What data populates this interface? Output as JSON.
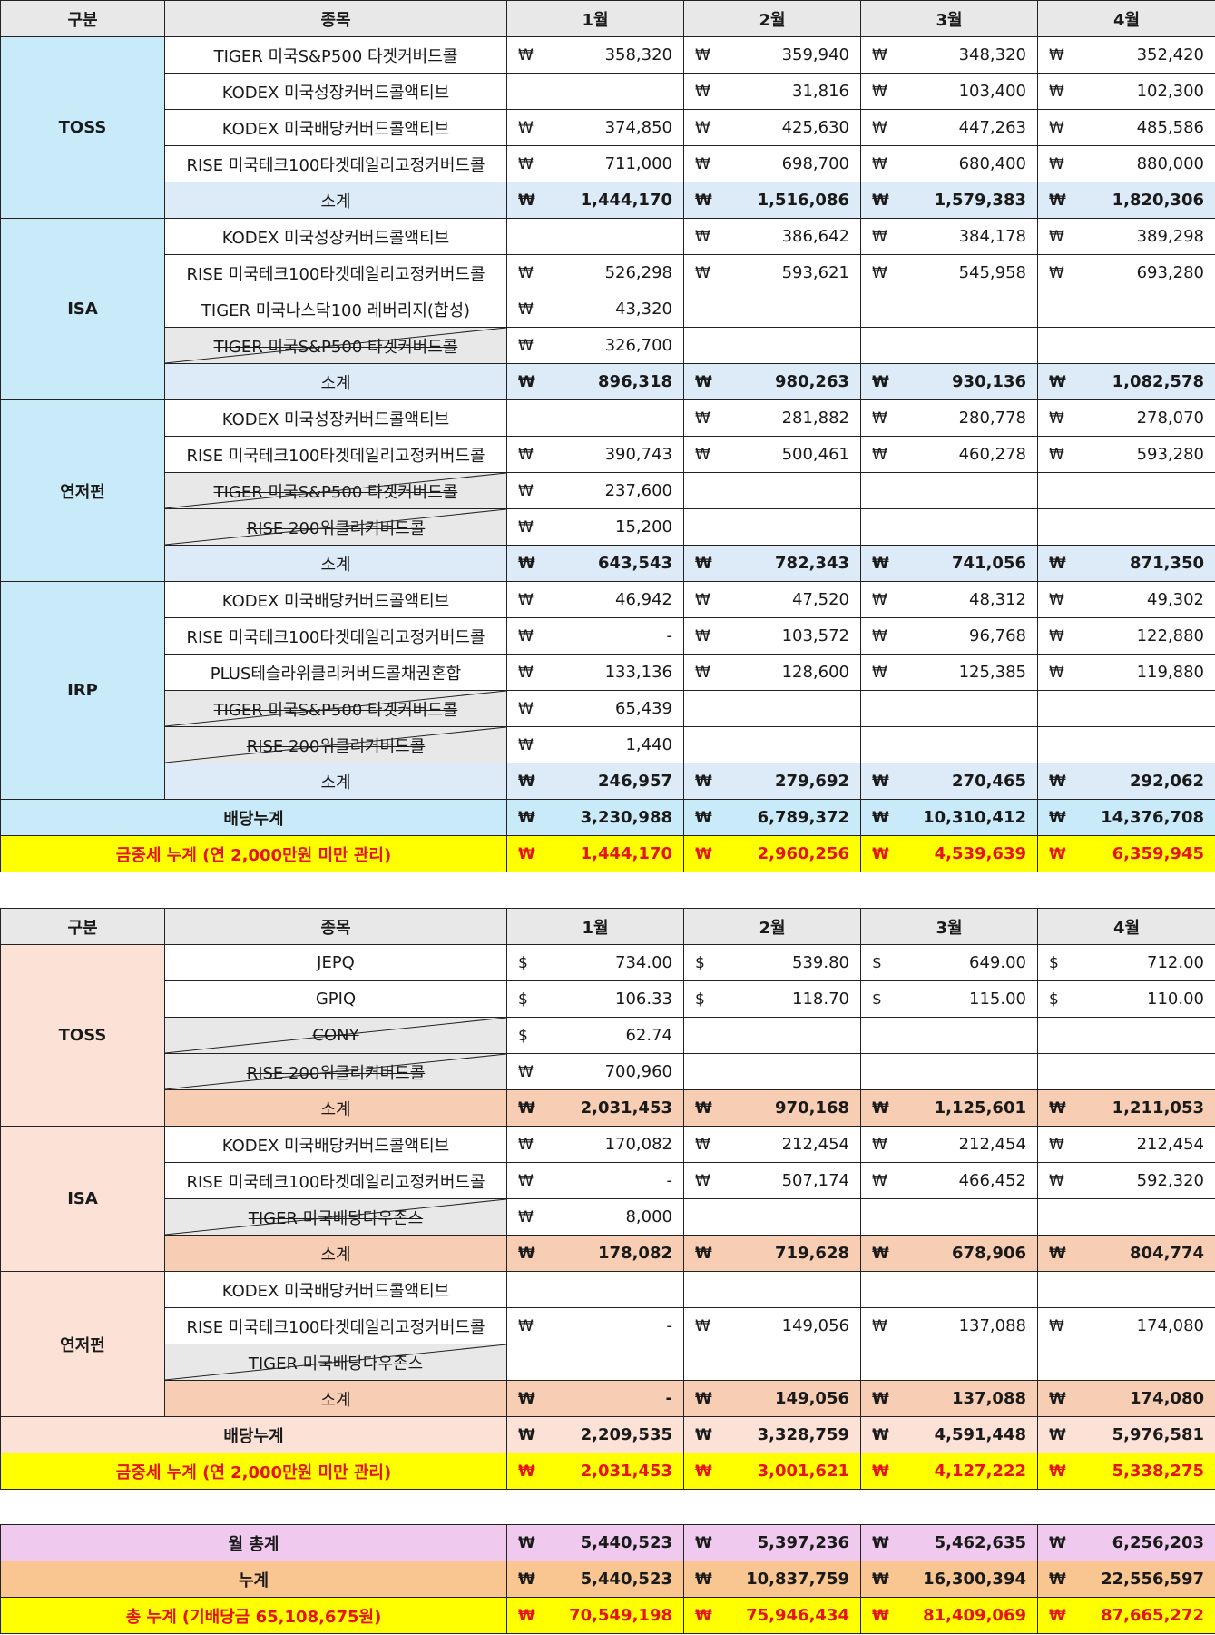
{
  "table1": {
    "headers": [
      "구분",
      "종목",
      "1월",
      "2월",
      "3월",
      "4월"
    ],
    "groups": [
      {
        "name": "TOSS",
        "rows": [
          {
            "item": "TIGER 미국S&P500 타겟커버드콜",
            "strike": false,
            "cells": [
              [
                "₩",
                "358,320"
              ],
              [
                "₩",
                "359,940"
              ],
              [
                "₩",
                "348,320"
              ],
              [
                "₩",
                "352,420"
              ]
            ]
          },
          {
            "item": "KODEX 미국성장커버드콜액티브",
            "strike": false,
            "cells": [
              [
                "",
                ""
              ],
              [
                "₩",
                "31,816"
              ],
              [
                "₩",
                "103,400"
              ],
              [
                "₩",
                "102,300"
              ]
            ]
          },
          {
            "item": "KODEX 미국배당커버드콜액티브",
            "strike": false,
            "cells": [
              [
                "₩",
                "374,850"
              ],
              [
                "₩",
                "425,630"
              ],
              [
                "₩",
                "447,263"
              ],
              [
                "₩",
                "485,586"
              ]
            ]
          },
          {
            "item": "RISE 미국테크100타겟데일리고정커버드콜",
            "strike": false,
            "cells": [
              [
                "₩",
                "711,000"
              ],
              [
                "₩",
                "698,700"
              ],
              [
                "₩",
                "680,400"
              ],
              [
                "₩",
                "880,000"
              ]
            ]
          }
        ],
        "subtotal": {
          "label": "소계",
          "cells": [
            [
              "₩",
              "1,444,170"
            ],
            [
              "₩",
              "1,516,086"
            ],
            [
              "₩",
              "1,579,383"
            ],
            [
              "₩",
              "1,820,306"
            ]
          ]
        }
      },
      {
        "name": "ISA",
        "rows": [
          {
            "item": "KODEX 미국성장커버드콜액티브",
            "strike": false,
            "cells": [
              [
                "",
                ""
              ],
              [
                "₩",
                "386,642"
              ],
              [
                "₩",
                "384,178"
              ],
              [
                "₩",
                "389,298"
              ]
            ]
          },
          {
            "item": "RISE 미국테크100타겟데일리고정커버드콜",
            "strike": false,
            "cells": [
              [
                "₩",
                "526,298"
              ],
              [
                "₩",
                "593,621"
              ],
              [
                "₩",
                "545,958"
              ],
              [
                "₩",
                "693,280"
              ]
            ]
          },
          {
            "item": "TIGER 미국나스닥100 레버리지(합성)",
            "strike": false,
            "cells": [
              [
                "₩",
                "43,320"
              ],
              [
                "",
                ""
              ],
              [
                "",
                ""
              ],
              [
                "",
                ""
              ]
            ]
          },
          {
            "item": "TIGER 미국S&P500 타겟커버드콜",
            "strike": true,
            "cells": [
              [
                "₩",
                "326,700"
              ],
              [
                "",
                ""
              ],
              [
                "",
                ""
              ],
              [
                "",
                ""
              ]
            ]
          }
        ],
        "subtotal": {
          "label": "소계",
          "cells": [
            [
              "₩",
              "896,318"
            ],
            [
              "₩",
              "980,263"
            ],
            [
              "₩",
              "930,136"
            ],
            [
              "₩",
              "1,082,578"
            ]
          ]
        }
      },
      {
        "name": "연저펀",
        "rows": [
          {
            "item": "KODEX 미국성장커버드콜액티브",
            "strike": false,
            "cells": [
              [
                "",
                ""
              ],
              [
                "₩",
                "281,882"
              ],
              [
                "₩",
                "280,778"
              ],
              [
                "₩",
                "278,070"
              ]
            ]
          },
          {
            "item": "RISE 미국테크100타겟데일리고정커버드콜",
            "strike": false,
            "cells": [
              [
                "₩",
                "390,743"
              ],
              [
                "₩",
                "500,461"
              ],
              [
                "₩",
                "460,278"
              ],
              [
                "₩",
                "593,280"
              ]
            ]
          },
          {
            "item": "TIGER 미국S&P500 타겟커버드콜",
            "strike": true,
            "cells": [
              [
                "₩",
                "237,600"
              ],
              [
                "",
                ""
              ],
              [
                "",
                ""
              ],
              [
                "",
                ""
              ]
            ]
          },
          {
            "item": "RISE 200위클리커버드콜",
            "strike": true,
            "cells": [
              [
                "₩",
                "15,200"
              ],
              [
                "",
                ""
              ],
              [
                "",
                ""
              ],
              [
                "",
                ""
              ]
            ]
          }
        ],
        "subtotal": {
          "label": "소계",
          "cells": [
            [
              "₩",
              "643,543"
            ],
            [
              "₩",
              "782,343"
            ],
            [
              "₩",
              "741,056"
            ],
            [
              "₩",
              "871,350"
            ]
          ]
        }
      },
      {
        "name": "IRP",
        "rows": [
          {
            "item": "KODEX 미국배당커버드콜액티브",
            "strike": false,
            "cells": [
              [
                "₩",
                "46,942"
              ],
              [
                "₩",
                "47,520"
              ],
              [
                "₩",
                "48,312"
              ],
              [
                "₩",
                "49,302"
              ]
            ]
          },
          {
            "item": "RISE 미국테크100타겟데일리고정커버드콜",
            "strike": false,
            "cells": [
              [
                "₩",
                "-"
              ],
              [
                "₩",
                "103,572"
              ],
              [
                "₩",
                "96,768"
              ],
              [
                "₩",
                "122,880"
              ]
            ]
          },
          {
            "item": "PLUS테슬라위클리커버드콜채권혼합",
            "strike": false,
            "cells": [
              [
                "₩",
                "133,136"
              ],
              [
                "₩",
                "128,600"
              ],
              [
                "₩",
                "125,385"
              ],
              [
                "₩",
                "119,880"
              ]
            ]
          },
          {
            "item": "TIGER 미국S&P500 타겟커버드콜",
            "strike": true,
            "cells": [
              [
                "₩",
                "65,439"
              ],
              [
                "",
                ""
              ],
              [
                "",
                ""
              ],
              [
                "",
                ""
              ]
            ]
          },
          {
            "item": "RISE 200위클리커버드콜",
            "strike": true,
            "cells": [
              [
                "₩",
                "1,440"
              ],
              [
                "",
                ""
              ],
              [
                "",
                ""
              ],
              [
                "",
                ""
              ]
            ]
          }
        ],
        "subtotal": {
          "label": "소계",
          "cells": [
            [
              "₩",
              "246,957"
            ],
            [
              "₩",
              "279,692"
            ],
            [
              "₩",
              "270,465"
            ],
            [
              "₩",
              "292,062"
            ]
          ]
        }
      }
    ],
    "accum": {
      "label": "배당누계",
      "cells": [
        [
          "₩",
          "3,230,988"
        ],
        [
          "₩",
          "6,789,372"
        ],
        [
          "₩",
          "10,310,412"
        ],
        [
          "₩",
          "14,376,708"
        ]
      ]
    },
    "tax": {
      "label": "금중세 누계 (연 2,000만원 미만 관리)",
      "cells": [
        [
          "₩",
          "1,444,170"
        ],
        [
          "₩",
          "2,960,256"
        ],
        [
          "₩",
          "4,539,639"
        ],
        [
          "₩",
          "6,359,945"
        ]
      ]
    }
  },
  "table2": {
    "headers": [
      "구분",
      "종목",
      "1월",
      "2월",
      "3월",
      "4월"
    ],
    "groups": [
      {
        "name": "TOSS",
        "rows": [
          {
            "item": "JEPQ",
            "strike": false,
            "cells": [
              [
                "$",
                "734.00"
              ],
              [
                "$",
                "539.80"
              ],
              [
                "$",
                "649.00"
              ],
              [
                "$",
                "712.00"
              ]
            ]
          },
          {
            "item": "GPIQ",
            "strike": false,
            "cells": [
              [
                "$",
                "106.33"
              ],
              [
                "$",
                "118.70"
              ],
              [
                "$",
                "115.00"
              ],
              [
                "$",
                "110.00"
              ]
            ]
          },
          {
            "item": "CONY",
            "strike": true,
            "cells": [
              [
                "$",
                "62.74"
              ],
              [
                "",
                ""
              ],
              [
                "",
                ""
              ],
              [
                "",
                ""
              ]
            ]
          },
          {
            "item": "RISE 200위클리커버드콜",
            "strike": true,
            "cells": [
              [
                "₩",
                "700,960"
              ],
              [
                "",
                ""
              ],
              [
                "",
                ""
              ],
              [
                "",
                ""
              ]
            ]
          }
        ],
        "subtotal": {
          "label": "소계",
          "cells": [
            [
              "₩",
              "2,031,453"
            ],
            [
              "₩",
              "970,168"
            ],
            [
              "₩",
              "1,125,601"
            ],
            [
              "₩",
              "1,211,053"
            ]
          ]
        }
      },
      {
        "name": "ISA",
        "rows": [
          {
            "item": "KODEX 미국배당커버드콜액티브",
            "strike": false,
            "cells": [
              [
                "₩",
                "170,082"
              ],
              [
                "₩",
                "212,454"
              ],
              [
                "₩",
                "212,454"
              ],
              [
                "₩",
                "212,454"
              ]
            ]
          },
          {
            "item": "RISE 미국테크100타겟데일리고정커버드콜",
            "strike": false,
            "cells": [
              [
                "₩",
                "-"
              ],
              [
                "₩",
                "507,174"
              ],
              [
                "₩",
                "466,452"
              ],
              [
                "₩",
                "592,320"
              ]
            ]
          },
          {
            "item": "TIGER 미국배당다우존스",
            "strike": true,
            "cells": [
              [
                "₩",
                "8,000"
              ],
              [
                "",
                ""
              ],
              [
                "",
                ""
              ],
              [
                "",
                ""
              ]
            ]
          }
        ],
        "subtotal": {
          "label": "소계",
          "cells": [
            [
              "₩",
              "178,082"
            ],
            [
              "₩",
              "719,628"
            ],
            [
              "₩",
              "678,906"
            ],
            [
              "₩",
              "804,774"
            ]
          ]
        }
      },
      {
        "name": "연저펀",
        "rows": [
          {
            "item": "KODEX 미국배당커버드콜액티브",
            "strike": false,
            "cells": [
              [
                "",
                ""
              ],
              [
                "",
                ""
              ],
              [
                "",
                ""
              ],
              [
                "",
                ""
              ]
            ]
          },
          {
            "item": "RISE 미국테크100타겟데일리고정커버드콜",
            "strike": false,
            "cells": [
              [
                "₩",
                "-"
              ],
              [
                "₩",
                "149,056"
              ],
              [
                "₩",
                "137,088"
              ],
              [
                "₩",
                "174,080"
              ]
            ]
          },
          {
            "item": "TIGER 미국배당다우존스",
            "strike": true,
            "cells": [
              [
                "",
                ""
              ],
              [
                "",
                ""
              ],
              [
                "",
                ""
              ],
              [
                "",
                ""
              ]
            ]
          }
        ],
        "subtotal": {
          "label": "소계",
          "cells": [
            [
              "₩",
              "-"
            ],
            [
              "₩",
              "149,056"
            ],
            [
              "₩",
              "137,088"
            ],
            [
              "₩",
              "174,080"
            ]
          ]
        }
      }
    ],
    "accum": {
      "label": "배당누계",
      "cells": [
        [
          "₩",
          "2,209,535"
        ],
        [
          "₩",
          "3,328,759"
        ],
        [
          "₩",
          "4,591,448"
        ],
        [
          "₩",
          "5,976,581"
        ]
      ]
    },
    "tax": {
      "label": "금중세 누계 (연 2,000만원 미만 관리)",
      "cells": [
        [
          "₩",
          "2,031,453"
        ],
        [
          "₩",
          "3,001,621"
        ],
        [
          "₩",
          "4,127,222"
        ],
        [
          "₩",
          "5,338,275"
        ]
      ]
    }
  },
  "summary": [
    {
      "key": "month_total",
      "label": "월 총계",
      "cells": [
        [
          "₩",
          "5,440,523"
        ],
        [
          "₩",
          "5,397,236"
        ],
        [
          "₩",
          "5,462,635"
        ],
        [
          "₩",
          "6,256,203"
        ]
      ]
    },
    {
      "key": "cumulative",
      "label": "누계",
      "cells": [
        [
          "₩",
          "5,440,523"
        ],
        [
          "₩",
          "10,837,759"
        ],
        [
          "₩",
          "16,300,394"
        ],
        [
          "₩",
          "22,556,597"
        ]
      ]
    },
    {
      "key": "grand_total",
      "label": "총 누계 (기배당금 65,108,675원)",
      "cells": [
        [
          "₩",
          "70,549,198"
        ],
        [
          "₩",
          "75,946,434"
        ],
        [
          "₩",
          "81,409,069"
        ],
        [
          "₩",
          "87,665,272"
        ]
      ]
    }
  ]
}
